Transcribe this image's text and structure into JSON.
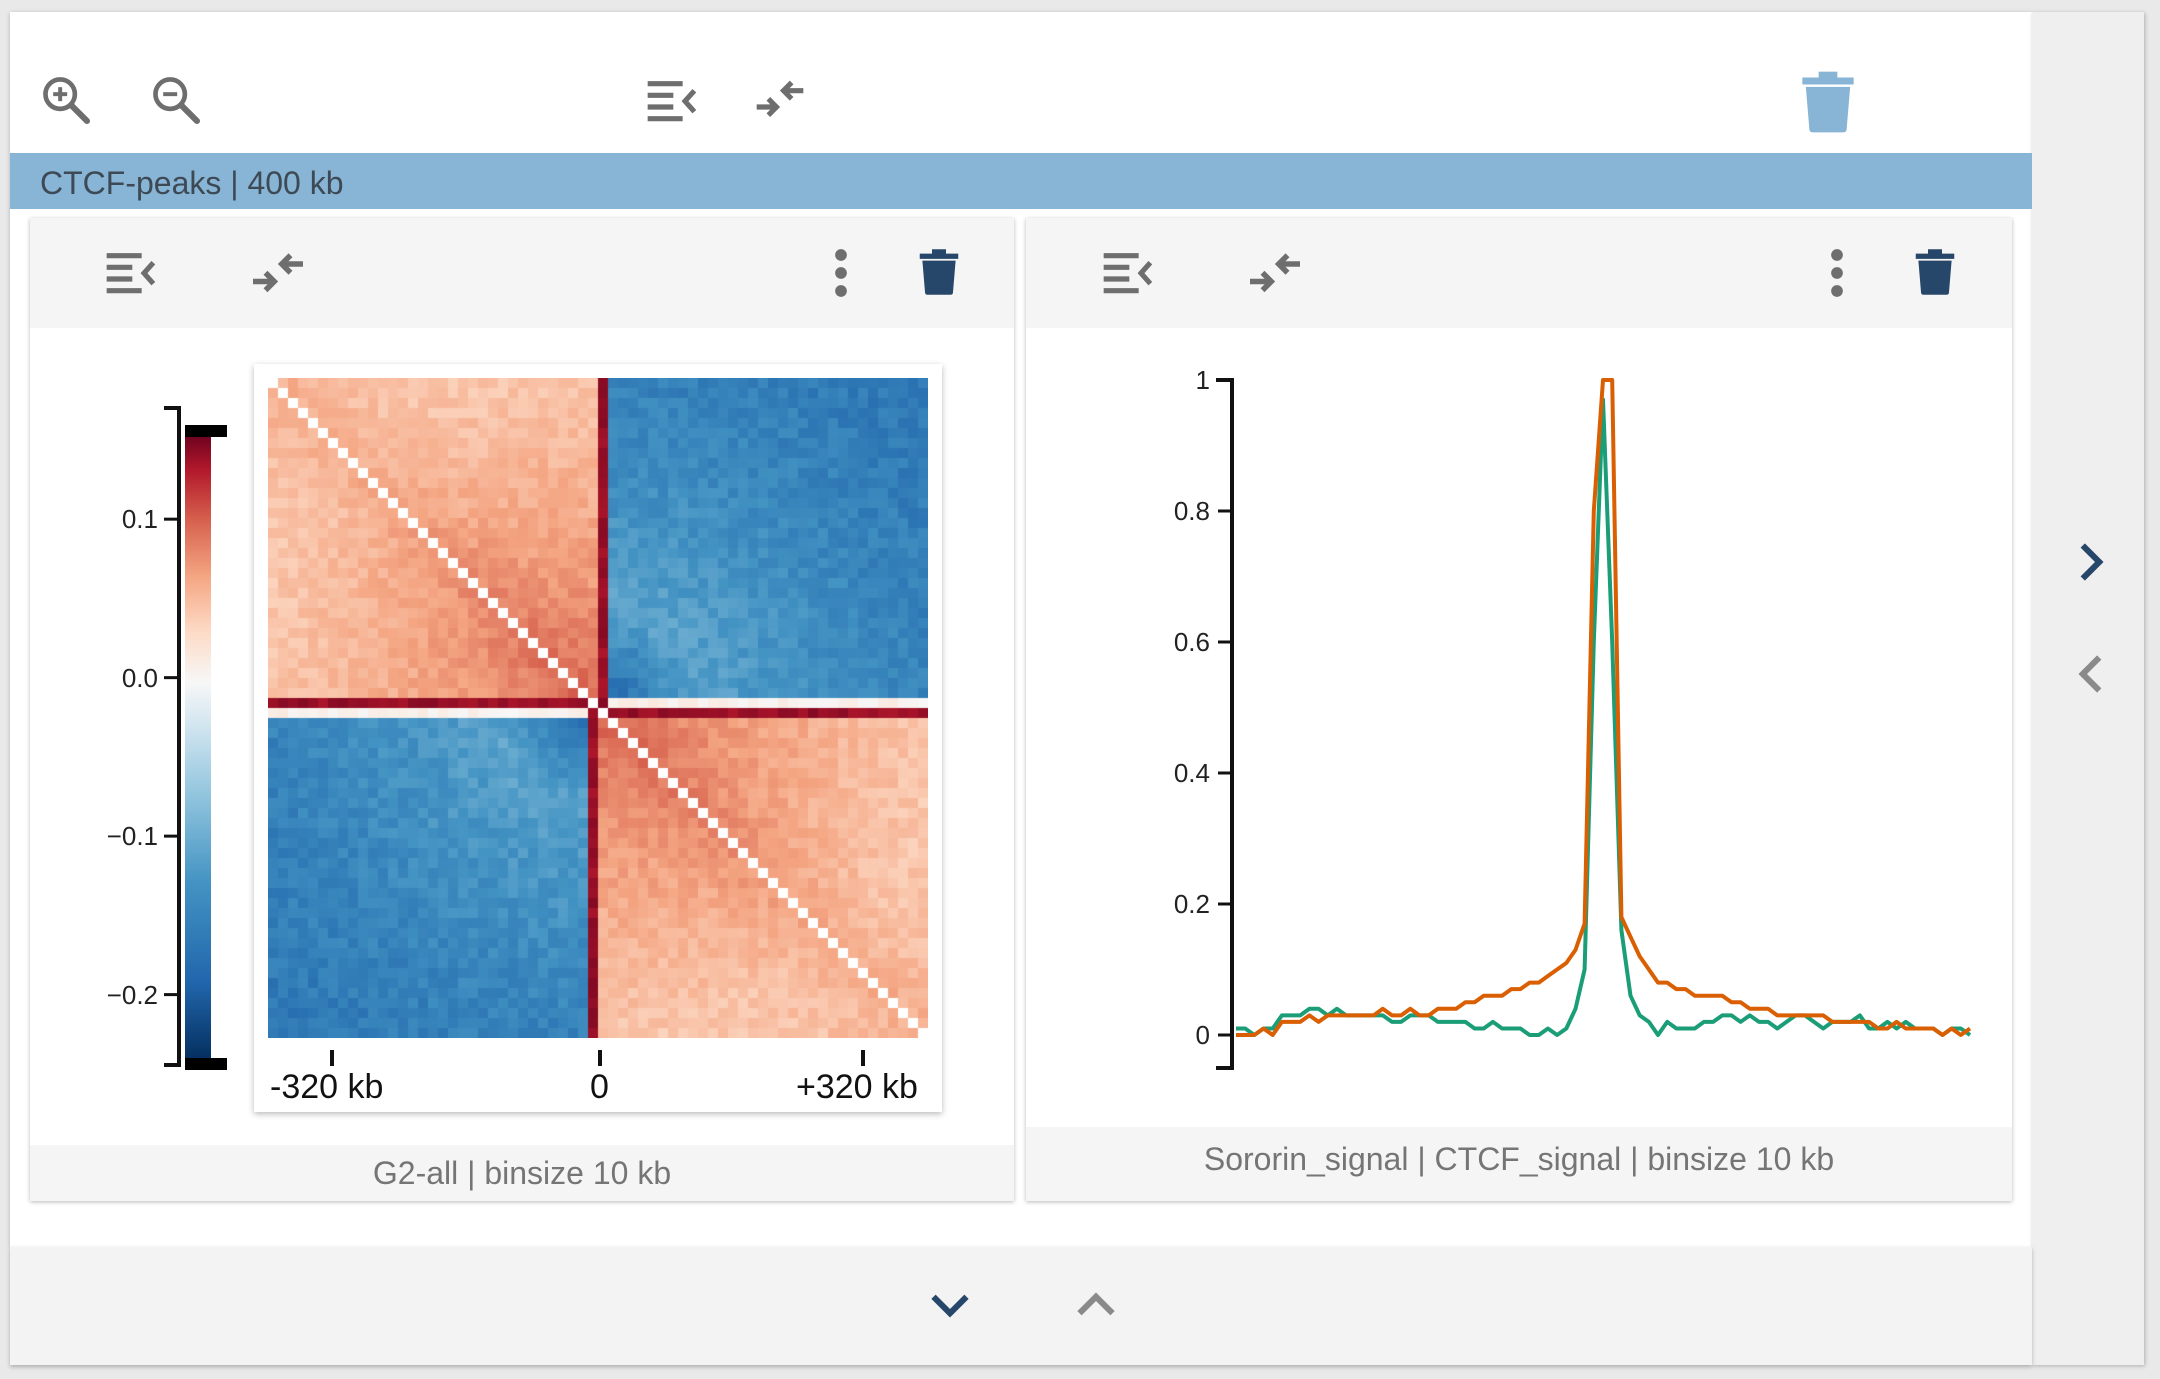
{
  "session": {
    "label": "CTCF-peaks | 400 kb"
  },
  "toolbar": {
    "icons": [
      "zoom-in-icon",
      "zoom-out-icon",
      "collapse-list-icon",
      "compress-icon",
      "trash-icon"
    ]
  },
  "panels": [
    {
      "id": "heatmap",
      "title": "G2-all | binsize 10 kb",
      "icons": [
        "collapse-list-icon",
        "compress-icon",
        "more-vert-icon",
        "trash-icon"
      ],
      "colorbar": {
        "ticks": [
          "0.1",
          "0.0",
          "−0.1",
          "−0.2"
        ],
        "tick_values": [
          0.1,
          0.0,
          -0.1,
          -0.2
        ],
        "range": [
          -0.24,
          0.155
        ],
        "colormap": [
          "#053061",
          "#2166ac",
          "#4393c3",
          "#92c5de",
          "#d1e5f0",
          "#f7f7f7",
          "#fddbc7",
          "#f4a582",
          "#d6604d",
          "#b2182b",
          "#67001f"
        ]
      },
      "x_ticks": [
        "-320 kb",
        "0",
        "+320 kb"
      ]
    },
    {
      "id": "lineplot",
      "title": "Sororin_signal | CTCF_signal | binsize 10 kb",
      "icons": [
        "collapse-list-icon",
        "compress-icon",
        "more-vert-icon",
        "trash-icon"
      ]
    }
  ],
  "nav": {
    "icons": [
      "chevron-right-icon",
      "chevron-left-icon",
      "chevron-down-icon",
      "chevron-up-icon"
    ]
  },
  "chart_data": {
    "type": "line",
    "ylim": [
      -0.05,
      1.0
    ],
    "y_ticks": [
      "1",
      "0.8",
      "0.6",
      "0.4",
      "0.2",
      "0"
    ],
    "y_tick_values": [
      1,
      0.8,
      0.6,
      0.4,
      0.2,
      0
    ],
    "x": [
      -40,
      -39,
      -38,
      -37,
      -36,
      -35,
      -34,
      -33,
      -32,
      -31,
      -30,
      -29,
      -28,
      -27,
      -26,
      -25,
      -24,
      -23,
      -22,
      -21,
      -20,
      -19,
      -18,
      -17,
      -16,
      -15,
      -14,
      -13,
      -12,
      -11,
      -10,
      -9,
      -8,
      -7,
      -6,
      -5,
      -4,
      -3,
      -2,
      -1,
      0,
      1,
      2,
      3,
      4,
      5,
      6,
      7,
      8,
      9,
      10,
      11,
      12,
      13,
      14,
      15,
      16,
      17,
      18,
      19,
      20,
      21,
      22,
      23,
      24,
      25,
      26,
      27,
      28,
      29,
      30,
      31,
      32,
      33,
      34,
      35,
      36,
      37,
      38,
      39,
      40
    ],
    "series": [
      {
        "color": "#1b9e77",
        "values": [
          0.01,
          0.01,
          0.0,
          0.01,
          0.01,
          0.03,
          0.03,
          0.03,
          0.04,
          0.04,
          0.03,
          0.04,
          0.03,
          0.03,
          0.03,
          0.03,
          0.03,
          0.02,
          0.02,
          0.03,
          0.03,
          0.03,
          0.02,
          0.02,
          0.02,
          0.02,
          0.01,
          0.01,
          0.02,
          0.01,
          0.01,
          0.01,
          0.0,
          0.0,
          0.01,
          0.0,
          0.01,
          0.04,
          0.1,
          0.6,
          0.97,
          0.6,
          0.16,
          0.06,
          0.03,
          0.02,
          0.0,
          0.02,
          0.01,
          0.01,
          0.01,
          0.02,
          0.02,
          0.03,
          0.03,
          0.02,
          0.03,
          0.02,
          0.02,
          0.01,
          0.02,
          0.03,
          0.03,
          0.02,
          0.01,
          0.02,
          0.02,
          0.02,
          0.03,
          0.01,
          0.01,
          0.02,
          0.01,
          0.02,
          0.01,
          0.01,
          0.01,
          0.0,
          0.01,
          0.01,
          0.0
        ]
      },
      {
        "color": "#d95f02",
        "values": [
          0.0,
          0.0,
          0.0,
          0.01,
          0.0,
          0.02,
          0.02,
          0.02,
          0.03,
          0.02,
          0.03,
          0.03,
          0.03,
          0.03,
          0.03,
          0.03,
          0.04,
          0.03,
          0.03,
          0.04,
          0.03,
          0.03,
          0.04,
          0.04,
          0.04,
          0.05,
          0.05,
          0.06,
          0.06,
          0.06,
          0.07,
          0.07,
          0.08,
          0.08,
          0.09,
          0.1,
          0.11,
          0.13,
          0.17,
          0.8,
          1.0,
          1.0,
          0.18,
          0.15,
          0.12,
          0.1,
          0.08,
          0.08,
          0.07,
          0.07,
          0.06,
          0.06,
          0.06,
          0.06,
          0.05,
          0.05,
          0.04,
          0.04,
          0.04,
          0.03,
          0.03,
          0.03,
          0.03,
          0.03,
          0.03,
          0.02,
          0.02,
          0.02,
          0.02,
          0.02,
          0.01,
          0.01,
          0.02,
          0.01,
          0.01,
          0.01,
          0.01,
          0.0,
          0.01,
          0.0,
          0.01
        ]
      }
    ]
  }
}
